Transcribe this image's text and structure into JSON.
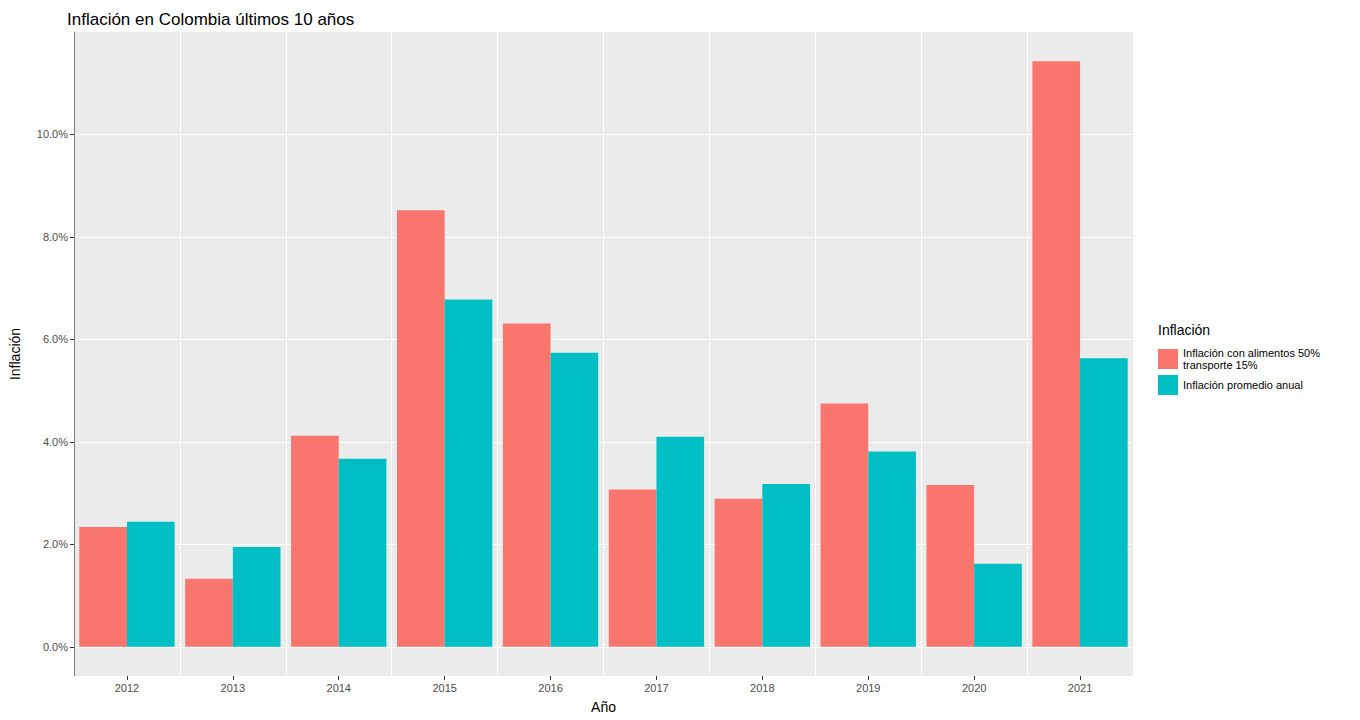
{
  "chart_data": {
    "type": "bar",
    "title": "Inflación en Colombia últimos 10 años",
    "x_label": "Año",
    "y_label": "Inflación",
    "legend_title": "Inflación",
    "categories": [
      "2012",
      "2013",
      "2014",
      "2015",
      "2016",
      "2017",
      "2018",
      "2019",
      "2020",
      "2021"
    ],
    "series": [
      {
        "name": "Inflación con alimentos 50%\ntransporte 15%",
        "color": "#F8766D",
        "values": [
          2.34,
          1.33,
          4.12,
          8.52,
          6.31,
          3.07,
          2.89,
          4.75,
          3.16,
          11.43
        ]
      },
      {
        "name": "Inflación promedio anual",
        "color": "#00BFC4",
        "values": [
          2.44,
          1.95,
          3.67,
          6.78,
          5.74,
          4.1,
          3.18,
          3.81,
          1.62,
          5.63
        ]
      }
    ],
    "ylim": [
      -0.57,
      12.0
    ],
    "yticks": [
      {
        "value": 0,
        "label": "0.0%"
      },
      {
        "value": 2,
        "label": "2.0%"
      },
      {
        "value": 4,
        "label": "4.0%"
      },
      {
        "value": 6,
        "label": "6.0%"
      },
      {
        "value": 8,
        "label": "8.0%"
      },
      {
        "value": 10,
        "label": "10.0%"
      }
    ],
    "grid": true,
    "legend": "right"
  }
}
